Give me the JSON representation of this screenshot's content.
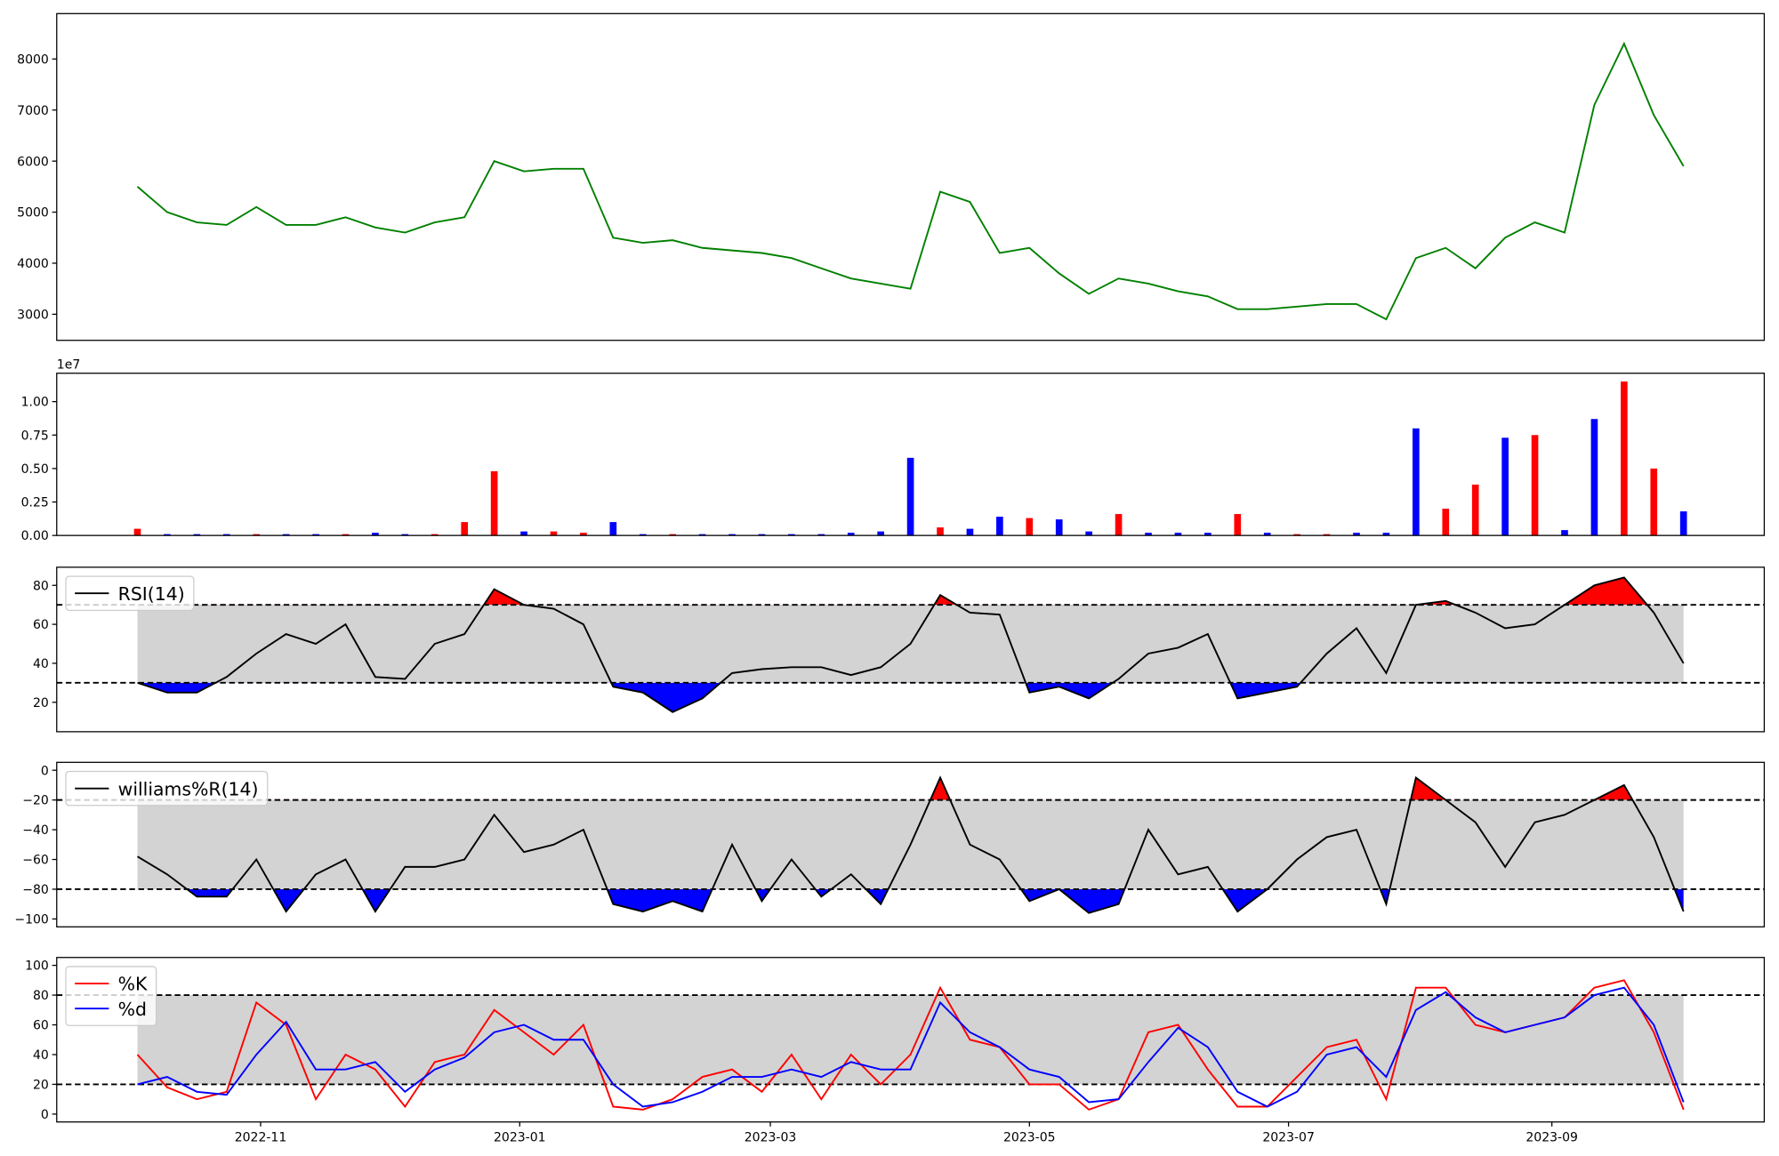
{
  "chart_data": [
    {
      "type": "line",
      "xlim": [
        "2022-09-14",
        "2023-10-21"
      ],
      "x": [
        "2022-10-03",
        "2022-10-10",
        "2022-10-17",
        "2022-10-24",
        "2022-10-31",
        "2022-11-07",
        "2022-11-14",
        "2022-11-21",
        "2022-11-28",
        "2022-12-05",
        "2022-12-12",
        "2022-12-19",
        "2022-12-26",
        "2023-01-02",
        "2023-01-09",
        "2023-01-16",
        "2023-01-23",
        "2023-01-30",
        "2023-02-06",
        "2023-02-13",
        "2023-02-20",
        "2023-02-27",
        "2023-03-06",
        "2023-03-13",
        "2023-03-20",
        "2023-03-27",
        "2023-04-03",
        "2023-04-10",
        "2023-04-17",
        "2023-04-24",
        "2023-05-01",
        "2023-05-08",
        "2023-05-15",
        "2023-05-22",
        "2023-05-29",
        "2023-06-05",
        "2023-06-12",
        "2023-06-19",
        "2023-06-26",
        "2023-07-03",
        "2023-07-10",
        "2023-07-17",
        "2023-07-24",
        "2023-07-31",
        "2023-08-07",
        "2023-08-14",
        "2023-08-21",
        "2023-08-28",
        "2023-09-04",
        "2023-09-11",
        "2023-09-18",
        "2023-09-25",
        "2023-10-02"
      ],
      "series": [
        {
          "color": "green",
          "values": [
            5500,
            5000,
            4800,
            4750,
            5100,
            4750,
            4750,
            4900,
            4700,
            4600,
            4800,
            4900,
            6000,
            5800,
            5850,
            5850,
            4500,
            4400,
            4450,
            4300,
            4250,
            4200,
            4100,
            3900,
            3700,
            3600,
            3500,
            5400,
            5200,
            4200,
            4300,
            3800,
            3400,
            3700,
            3600,
            3450,
            3350,
            3100,
            3100,
            3150,
            3200,
            3200,
            2900,
            4100,
            4300,
            3900,
            4500,
            4800,
            4600,
            7100,
            8300,
            6900,
            5900
          ]
        }
      ],
      "ylim": [
        2489,
        8889
      ],
      "yticks": [
        3000,
        4000,
        5000,
        6000,
        7000,
        8000
      ]
    },
    {
      "type": "bar",
      "xlim": [
        "2022-09-14",
        "2023-10-21"
      ],
      "offset_label": "1e7",
      "x": [
        "2022-10-03",
        "2022-10-10",
        "2022-10-17",
        "2022-10-24",
        "2022-10-31",
        "2022-11-07",
        "2022-11-14",
        "2022-11-21",
        "2022-11-28",
        "2022-12-05",
        "2022-12-12",
        "2022-12-19",
        "2022-12-26",
        "2023-01-02",
        "2023-01-09",
        "2023-01-16",
        "2023-01-23",
        "2023-01-30",
        "2023-02-06",
        "2023-02-13",
        "2023-02-20",
        "2023-02-27",
        "2023-03-06",
        "2023-03-13",
        "2023-03-20",
        "2023-03-27",
        "2023-04-03",
        "2023-04-10",
        "2023-04-17",
        "2023-04-24",
        "2023-05-01",
        "2023-05-08",
        "2023-05-15",
        "2023-05-22",
        "2023-05-29",
        "2023-06-05",
        "2023-06-12",
        "2023-06-19",
        "2023-06-26",
        "2023-07-03",
        "2023-07-10",
        "2023-07-17",
        "2023-07-24",
        "2023-07-31",
        "2023-08-07",
        "2023-08-14",
        "2023-08-21",
        "2023-08-28",
        "2023-09-04",
        "2023-09-11",
        "2023-09-18",
        "2023-09-25",
        "2023-10-02"
      ],
      "values": [
        0.05,
        0.01,
        0.01,
        0.01,
        0.01,
        0.01,
        0.01,
        0.01,
        0.02,
        0.01,
        0.01,
        0.1,
        0.48,
        0.03,
        0.03,
        0.02,
        0.1,
        0.01,
        0.01,
        0.01,
        0.01,
        0.01,
        0.01,
        0.01,
        0.02,
        0.03,
        0.58,
        0.06,
        0.05,
        0.14,
        0.13,
        0.12,
        0.03,
        0.16,
        0.02,
        0.02,
        0.02,
        0.16,
        0.02,
        0.01,
        0.01,
        0.02,
        0.02,
        0.8,
        0.2,
        0.38,
        0.73,
        0.75,
        0.04,
        0.87,
        1.15,
        0.5,
        0.18
      ],
      "colors": [
        "red",
        "blue",
        "blue",
        "blue",
        "red",
        "blue",
        "blue",
        "red",
        "blue",
        "blue",
        "red",
        "red",
        "red",
        "blue",
        "red",
        "red",
        "blue",
        "blue",
        "red",
        "blue",
        "blue",
        "blue",
        "blue",
        "blue",
        "blue",
        "blue",
        "blue",
        "red",
        "blue",
        "blue",
        "red",
        "blue",
        "blue",
        "red",
        "blue",
        "blue",
        "blue",
        "red",
        "blue",
        "red",
        "red",
        "blue",
        "blue",
        "blue",
        "red",
        "red",
        "blue",
        "red",
        "blue",
        "blue",
        "red",
        "red",
        "blue"
      ],
      "ylim": [
        0,
        1.212
      ],
      "yticks": [
        {
          "value": 0,
          "label": "0.00"
        },
        {
          "value": 0.25,
          "label": "0.25"
        },
        {
          "value": 0.5,
          "label": "0.50"
        },
        {
          "value": 0.75,
          "label": "0.75"
        },
        {
          "value": 1,
          "label": "1.00"
        }
      ]
    },
    {
      "type": "line",
      "xlim": [
        "2022-09-14",
        "2023-10-21"
      ],
      "x": [
        "2022-10-03",
        "2022-10-10",
        "2022-10-17",
        "2022-10-24",
        "2022-10-31",
        "2022-11-07",
        "2022-11-14",
        "2022-11-21",
        "2022-11-28",
        "2022-12-05",
        "2022-12-12",
        "2022-12-19",
        "2022-12-26",
        "2023-01-02",
        "2023-01-09",
        "2023-01-16",
        "2023-01-23",
        "2023-01-30",
        "2023-02-06",
        "2023-02-13",
        "2023-02-20",
        "2023-02-27",
        "2023-03-06",
        "2023-03-13",
        "2023-03-20",
        "2023-03-27",
        "2023-04-03",
        "2023-04-10",
        "2023-04-17",
        "2023-04-24",
        "2023-05-01",
        "2023-05-08",
        "2023-05-15",
        "2023-05-22",
        "2023-05-29",
        "2023-06-05",
        "2023-06-12",
        "2023-06-19",
        "2023-06-26",
        "2023-07-03",
        "2023-07-10",
        "2023-07-17",
        "2023-07-24",
        "2023-07-31",
        "2023-08-07",
        "2023-08-14",
        "2023-08-21",
        "2023-08-28",
        "2023-09-04",
        "2023-09-11",
        "2023-09-18",
        "2023-09-25",
        "2023-10-02"
      ],
      "series": [
        {
          "name": "RSI(14)",
          "color": "black",
          "values": [
            30,
            25,
            25,
            33,
            45,
            55,
            50,
            60,
            33,
            32,
            50,
            55,
            78,
            70,
            68,
            60,
            28,
            25,
            15,
            22,
            35,
            37,
            38,
            38,
            34,
            38,
            50,
            75,
            66,
            65,
            25,
            28,
            22,
            32,
            45,
            48,
            55,
            22,
            25,
            28,
            45,
            58,
            35,
            70,
            72,
            66,
            58,
            60,
            70,
            80,
            84,
            66,
            40
          ]
        }
      ],
      "thresholds": [
        30,
        70
      ],
      "band_color": "lightgray",
      "overbought_color": "red",
      "oversold_color": "blue",
      "legend": "upper left",
      "ylim": [
        4.9,
        89.3
      ],
      "yticks": [
        20,
        40,
        60,
        80
      ]
    },
    {
      "type": "line",
      "xlim": [
        "2022-09-14",
        "2023-10-21"
      ],
      "x": [
        "2022-10-03",
        "2022-10-10",
        "2022-10-17",
        "2022-10-24",
        "2022-10-31",
        "2022-11-07",
        "2022-11-14",
        "2022-11-21",
        "2022-11-28",
        "2022-12-05",
        "2022-12-12",
        "2022-12-19",
        "2022-12-26",
        "2023-01-02",
        "2023-01-09",
        "2023-01-16",
        "2023-01-23",
        "2023-01-30",
        "2023-02-06",
        "2023-02-13",
        "2023-02-20",
        "2023-02-27",
        "2023-03-06",
        "2023-03-13",
        "2023-03-20",
        "2023-03-27",
        "2023-04-03",
        "2023-04-10",
        "2023-04-17",
        "2023-04-24",
        "2023-05-01",
        "2023-05-08",
        "2023-05-15",
        "2023-05-22",
        "2023-05-29",
        "2023-06-05",
        "2023-06-12",
        "2023-06-19",
        "2023-06-26",
        "2023-07-03",
        "2023-07-10",
        "2023-07-17",
        "2023-07-24",
        "2023-07-31",
        "2023-08-07",
        "2023-08-14",
        "2023-08-21",
        "2023-08-28",
        "2023-09-04",
        "2023-09-11",
        "2023-09-18",
        "2023-09-25",
        "2023-10-02"
      ],
      "series": [
        {
          "name": "williams%R(14)",
          "color": "black",
          "values": [
            -58,
            -70,
            -85,
            -85,
            -60,
            -95,
            -70,
            -60,
            -95,
            -65,
            -65,
            -60,
            -30,
            -55,
            -50,
            -40,
            -90,
            -95,
            -88,
            -95,
            -50,
            -88,
            -60,
            -85,
            -70,
            -90,
            -50,
            -5,
            -50,
            -60,
            -88,
            -80,
            -96,
            -90,
            -40,
            -70,
            -65,
            -95,
            -80,
            -60,
            -45,
            -40,
            -90,
            -5,
            -20,
            -35,
            -65,
            -35,
            -30,
            -20,
            -10,
            -45,
            -95
          ]
        }
      ],
      "thresholds": [
        -80,
        -20
      ],
      "band_color": "lightgray",
      "overbought_color": "red",
      "oversold_color": "blue",
      "legend": "upper left",
      "ylim": [
        -105.3,
        5.3
      ],
      "yticks": [
        {
          "value": -100,
          "label": "−100"
        },
        {
          "value": -80,
          "label": "−80"
        },
        {
          "value": -60,
          "label": "−60"
        },
        {
          "value": -40,
          "label": "−40"
        },
        {
          "value": -20,
          "label": "−20"
        },
        0
      ]
    },
    {
      "type": "line",
      "xlim": [
        "2022-09-14",
        "2023-10-21"
      ],
      "x": [
        "2022-10-03",
        "2022-10-10",
        "2022-10-17",
        "2022-10-24",
        "2022-10-31",
        "2022-11-07",
        "2022-11-14",
        "2022-11-21",
        "2022-11-28",
        "2022-12-05",
        "2022-12-12",
        "2022-12-19",
        "2022-12-26",
        "2023-01-02",
        "2023-01-09",
        "2023-01-16",
        "2023-01-23",
        "2023-01-30",
        "2023-02-06",
        "2023-02-13",
        "2023-02-20",
        "2023-02-27",
        "2023-03-06",
        "2023-03-13",
        "2023-03-20",
        "2023-03-27",
        "2023-04-03",
        "2023-04-10",
        "2023-04-17",
        "2023-04-24",
        "2023-05-01",
        "2023-05-08",
        "2023-05-15",
        "2023-05-22",
        "2023-05-29",
        "2023-06-05",
        "2023-06-12",
        "2023-06-19",
        "2023-06-26",
        "2023-07-03",
        "2023-07-10",
        "2023-07-17",
        "2023-07-24",
        "2023-07-31",
        "2023-08-07",
        "2023-08-14",
        "2023-08-21",
        "2023-08-28",
        "2023-09-04",
        "2023-09-11",
        "2023-09-18",
        "2023-09-25",
        "2023-10-02"
      ],
      "series": [
        {
          "name": "%K",
          "color": "red",
          "values": [
            40,
            18,
            10,
            15,
            75,
            60,
            10,
            40,
            30,
            5,
            35,
            40,
            70,
            55,
            40,
            60,
            5,
            3,
            10,
            25,
            30,
            15,
            40,
            10,
            40,
            20,
            40,
            85,
            50,
            45,
            20,
            20,
            3,
            10,
            55,
            60,
            30,
            5,
            5,
            25,
            45,
            50,
            10,
            85,
            85,
            60,
            55,
            60,
            65,
            85,
            90,
            55,
            3
          ]
        },
        {
          "name": "%d",
          "color": "blue",
          "values": [
            20,
            25,
            15,
            13,
            40,
            62,
            30,
            30,
            35,
            15,
            30,
            38,
            55,
            60,
            50,
            50,
            20,
            5,
            8,
            15,
            25,
            25,
            30,
            25,
            35,
            30,
            30,
            75,
            55,
            45,
            30,
            25,
            8,
            10,
            35,
            58,
            45,
            15,
            5,
            15,
            40,
            45,
            25,
            70,
            82,
            65,
            55,
            60,
            65,
            80,
            85,
            60,
            8
          ]
        }
      ],
      "thresholds": [
        20,
        80
      ],
      "band_color": "lightgray",
      "legend": "upper left",
      "ylim": [
        -5.3,
        105.3
      ],
      "yticks": [
        0,
        20,
        40,
        60,
        80,
        100
      ],
      "xticks": [
        {
          "value": "2022-11-01",
          "label": "2022-11"
        },
        {
          "value": "2023-01-01",
          "label": "2023-01"
        },
        {
          "value": "2023-03-01",
          "label": "2023-03"
        },
        {
          "value": "2023-05-01",
          "label": "2023-05"
        },
        {
          "value": "2023-07-01",
          "label": "2023-07"
        },
        {
          "value": "2023-09-01",
          "label": "2023-09"
        }
      ]
    }
  ]
}
